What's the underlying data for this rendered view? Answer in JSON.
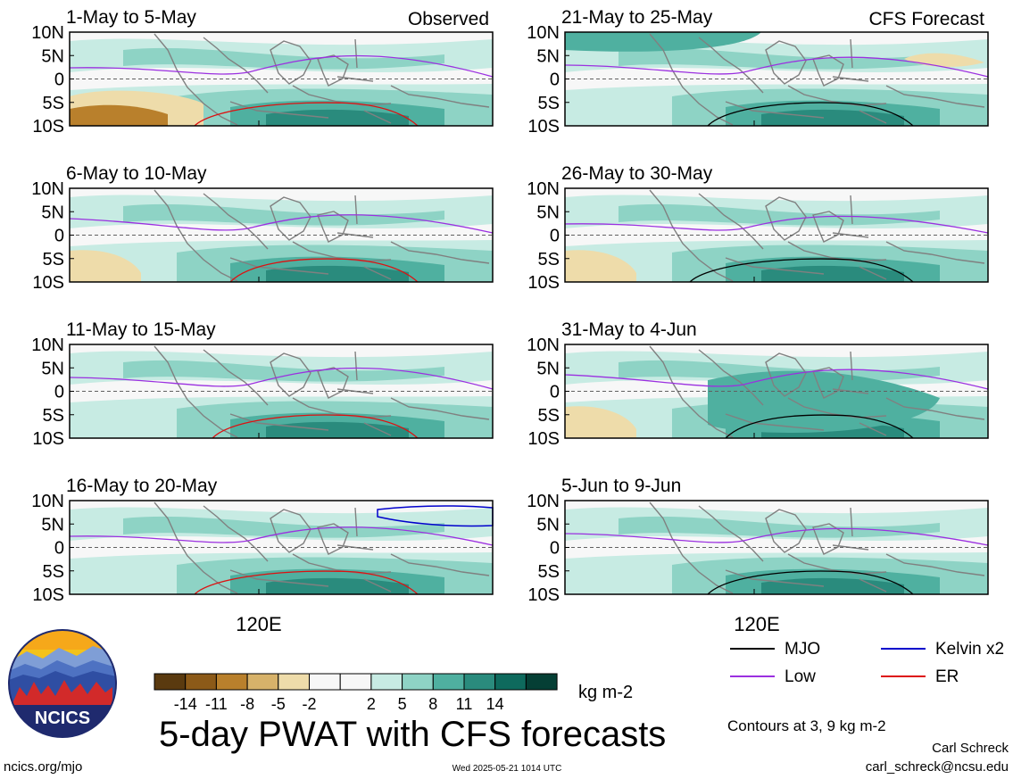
{
  "panels": [
    {
      "title": "1-May to 5-May",
      "tag": "Observed"
    },
    {
      "title": "21-May to 25-May",
      "tag": "CFS Forecast"
    },
    {
      "title": "6-May to 10-May",
      "tag": ""
    },
    {
      "title": "26-May to 30-May",
      "tag": ""
    },
    {
      "title": "11-May to 15-May",
      "tag": ""
    },
    {
      "title": "31-May to 4-Jun",
      "tag": ""
    },
    {
      "title": "16-May to 20-May",
      "tag": ""
    },
    {
      "title": "5-Jun to 9-Jun",
      "tag": ""
    }
  ],
  "lat_ticks": [
    "10N",
    "5N",
    "0",
    "5S",
    "10S"
  ],
  "lon_label": "120E",
  "colorbar": {
    "colors": [
      "#5a3a0f",
      "#8c5a18",
      "#b9802c",
      "#d7b26a",
      "#eedcaa",
      "#f7f7f7",
      "#f7f7f7",
      "#c7ebe3",
      "#8ed3c5",
      "#4fb0a0",
      "#2a8b7d",
      "#0e6a5d",
      "#053f35"
    ],
    "tick_labels": [
      "-14",
      "-11",
      "-8",
      "-5",
      "-2",
      "2",
      "5",
      "8",
      "11",
      "14"
    ],
    "units": "kg m-2"
  },
  "legend": [
    {
      "label": "MJO",
      "color": "#000000"
    },
    {
      "label": "Kelvin x2",
      "color": "#0000cc"
    },
    {
      "label": "Low",
      "color": "#9b30e0"
    },
    {
      "label": "ER",
      "color": "#dd1111"
    }
  ],
  "contours_note": "Contours at 3, 9 kg m-2",
  "main_title": "5-day PWAT with CFS forecasts",
  "author": "Carl Schreck",
  "email": "carl_schreck@ncsu.edu",
  "website": "ncics.org/mjo",
  "timestamp": "Wed 2025-05-21 1014 UTC",
  "logo_text": "NCICS"
}
